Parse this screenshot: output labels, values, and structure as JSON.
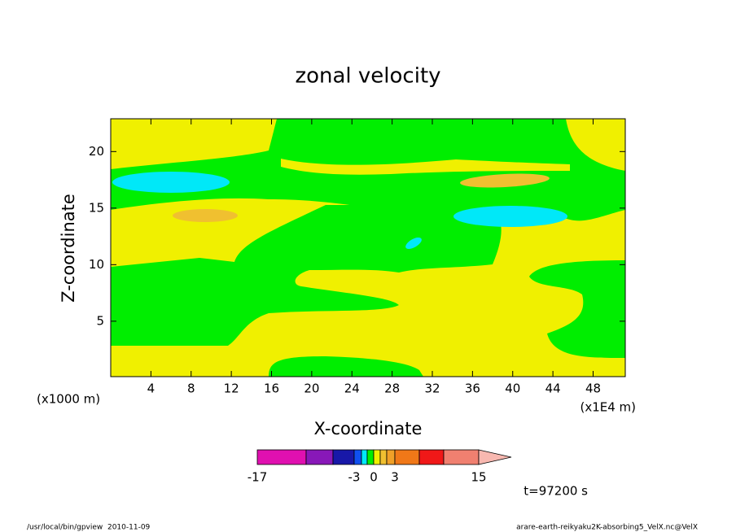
{
  "chart_data": {
    "type": "contour",
    "title": "zonal velocity",
    "xlabel": "X-coordinate",
    "ylabel": "Z-coordinate",
    "xunit": "(x1E4 m)",
    "yunit": "(x1000 m)",
    "xlim": [
      0,
      51.2
    ],
    "ylim": [
      0.1,
      22.9
    ],
    "xticks": [
      4,
      8,
      12,
      16,
      20,
      24,
      28,
      32,
      36,
      40,
      44,
      48
    ],
    "yticks": [
      5,
      10,
      15,
      20
    ],
    "colorbar": {
      "bounds": [
        -17,
        -12,
        -6,
        -3,
        -2,
        -1,
        0,
        1,
        2,
        3,
        6,
        9,
        15
      ],
      "colors": [
        "#e010b0",
        "#8818b8",
        "#1818a8",
        "#1050f0",
        "#00e8f8",
        "#00ee00",
        "#f0f000",
        "#f0c030",
        "#f0a028",
        "#f07818",
        "#f01818",
        "#f08070"
      ],
      "extend_color": "#f8b8b0",
      "ticks": [
        -17,
        -3,
        0,
        3,
        15
      ]
    },
    "time_label": "t=97200 s"
  },
  "footer": {
    "left": "/usr/local/bin/gpview  2010-11-09",
    "right": "arare-earth-reikyaku2K-absorbing5_VelX.nc@VelX"
  }
}
